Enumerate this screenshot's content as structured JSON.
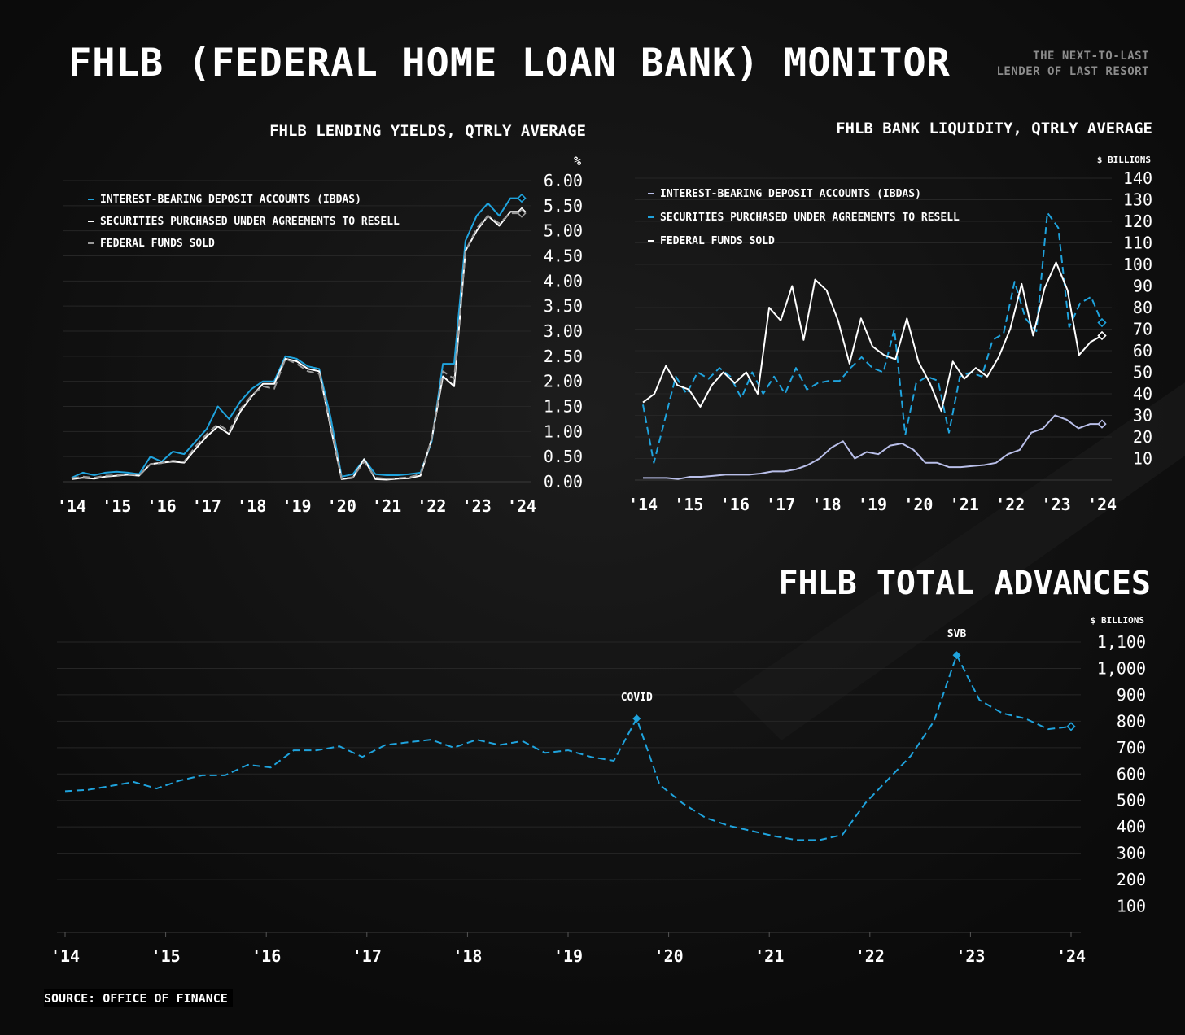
{
  "header": {
    "title": "FHLB (FEDERAL HOME LOAN BANK) MONITOR",
    "subtitle_line1": "THE NEXT-TO-LAST",
    "subtitle_line2": "LENDER OF LAST RESORT"
  },
  "source": "SOURCE: OFFICE OF FINANCE",
  "colors": {
    "background": "#0b0b0b",
    "accent_blue": "#1fa3dd",
    "white": "#ffffff",
    "lavender": "#b9bfe9",
    "gray": "#9a9a9a",
    "grid": "#262626"
  },
  "chart_data": [
    {
      "type": "line",
      "title": "FHLB LENDING YIELDS, QTRLY AVERAGE",
      "ylabel": "%",
      "ylim": [
        0,
        6
      ],
      "yticks": [
        "0.00",
        "0.50",
        "1.00",
        "1.50",
        "2.00",
        "2.50",
        "3.00",
        "3.50",
        "4.00",
        "4.50",
        "5.00",
        "5.50",
        "6.00"
      ],
      "xticks": [
        "'14",
        "'15",
        "'16",
        "'17",
        "'18",
        "'19",
        "'20",
        "'21",
        "'22",
        "'23",
        "'24"
      ],
      "x_start": 2014.0,
      "x_end": 2024.0,
      "grid": true,
      "legend_position": "top-left",
      "series": [
        {
          "name": "INTEREST-BEARING DEPOSIT ACCOUNTS (IBDAS)",
          "color": "#1fa3dd",
          "dash": "solid",
          "values": [
            0.08,
            0.18,
            0.13,
            0.18,
            0.2,
            0.18,
            0.15,
            0.5,
            0.4,
            0.6,
            0.55,
            0.8,
            1.05,
            1.5,
            1.25,
            1.6,
            1.85,
            2.0,
            2.0,
            2.5,
            2.45,
            2.3,
            2.25,
            1.3,
            0.1,
            0.15,
            0.45,
            0.15,
            0.13,
            0.13,
            0.15,
            0.18,
            0.8,
            2.35,
            2.35,
            4.8,
            5.3,
            5.55,
            5.3,
            5.65,
            5.65
          ]
        },
        {
          "name": "SECURITIES PURCHASED UNDER AGREEMENTS TO RESELL",
          "color": "#ffffff",
          "dash": "solid",
          "values": [
            0.05,
            0.08,
            0.06,
            0.1,
            0.12,
            0.14,
            0.12,
            0.35,
            0.38,
            0.4,
            0.38,
            0.65,
            0.9,
            1.1,
            0.95,
            1.4,
            1.7,
            1.95,
            1.95,
            2.45,
            2.4,
            2.25,
            2.2,
            1.1,
            0.05,
            0.08,
            0.45,
            0.05,
            0.04,
            0.06,
            0.07,
            0.12,
            0.85,
            2.1,
            1.9,
            4.6,
            5.0,
            5.3,
            5.1,
            5.38,
            5.38
          ]
        },
        {
          "name": "FEDERAL FUNDS SOLD",
          "color": "#9a9a9a",
          "dash": "dashed",
          "values": [
            0.07,
            0.1,
            0.08,
            0.12,
            0.13,
            0.15,
            0.13,
            0.35,
            0.37,
            0.42,
            0.4,
            0.7,
            0.95,
            1.15,
            1.0,
            1.45,
            1.72,
            1.9,
            1.85,
            2.45,
            2.35,
            2.2,
            2.15,
            1.15,
            0.06,
            0.09,
            0.4,
            0.08,
            0.06,
            0.07,
            0.09,
            0.15,
            0.85,
            2.2,
            2.05,
            4.6,
            5.05,
            5.3,
            5.15,
            5.35,
            5.35
          ]
        }
      ]
    },
    {
      "type": "line",
      "title": "FHLB BANK LIQUIDITY, QTRLY AVERAGE",
      "ylabel": "$ BILLIONS",
      "ylim": [
        0,
        140
      ],
      "yticks": [
        "10",
        "20",
        "30",
        "40",
        "50",
        "60",
        "70",
        "80",
        "90",
        "100",
        "110",
        "120",
        "130",
        "140"
      ],
      "xticks": [
        "'14",
        "'15",
        "'16",
        "'17",
        "'18",
        "'19",
        "'20",
        "'21",
        "'22",
        "'23",
        "'24"
      ],
      "x_start": 2014.0,
      "x_end": 2024.0,
      "grid": true,
      "legend_position": "top-left",
      "series": [
        {
          "name": "INTEREST-BEARING DEPOSIT ACCOUNTS (IBDAS)",
          "color": "#b9bfe9",
          "dash": "solid",
          "values": [
            1,
            1,
            1,
            0.5,
            1.5,
            1.5,
            2,
            2.5,
            2.5,
            2.5,
            3,
            4,
            4,
            5,
            7,
            10,
            15,
            18,
            10,
            13,
            12,
            16,
            17,
            14,
            8,
            8,
            6,
            6,
            6.5,
            7,
            8,
            12,
            14,
            22,
            24,
            30,
            28,
            24,
            26,
            26
          ]
        },
        {
          "name": "SECURITIES PURCHASED UNDER AGREEMENTS TO RESELL",
          "color": "#1fa3dd",
          "dash": "dashed",
          "values": [
            35,
            8,
            28,
            48,
            40,
            50,
            47,
            52,
            48,
            38,
            50,
            40,
            48,
            40,
            52,
            42,
            45,
            46,
            46,
            52,
            57,
            52,
            50,
            70,
            21,
            45,
            48,
            46,
            22,
            48,
            50,
            48,
            65,
            68,
            92,
            75,
            69,
            124,
            117,
            71,
            82,
            85,
            73
          ]
        },
        {
          "name": "FEDERAL FUNDS SOLD",
          "color": "#ffffff",
          "dash": "solid",
          "values": [
            36,
            40,
            53,
            44,
            42,
            34,
            44,
            50,
            45,
            50,
            40,
            80,
            74,
            90,
            65,
            93,
            88,
            74,
            54,
            75,
            62,
            58,
            56,
            75,
            55,
            45,
            32,
            55,
            47,
            52,
            48,
            57,
            70,
            91,
            67,
            89,
            101,
            88,
            58,
            64,
            67
          ]
        }
      ]
    },
    {
      "type": "line",
      "title": "FHLB TOTAL ADVANCES",
      "ylabel": "$ BILLIONS",
      "ylim": [
        0,
        1100
      ],
      "yticks": [
        "100",
        "200",
        "300",
        "400",
        "500",
        "600",
        "700",
        "800",
        "900",
        "1,000",
        "1,100"
      ],
      "xticks": [
        "'14",
        "'15",
        "'16",
        "'17",
        "'18",
        "'19",
        "'20",
        "'21",
        "'22",
        "'23",
        "'24"
      ],
      "x_start": 2014.0,
      "x_end": 2024.0,
      "grid": true,
      "series": [
        {
          "name": "",
          "color": "#1fa3dd",
          "dash": "dashed",
          "values": [
            535,
            540,
            555,
            570,
            545,
            575,
            595,
            595,
            635,
            625,
            690,
            690,
            705,
            665,
            710,
            720,
            730,
            700,
            730,
            710,
            725,
            680,
            690,
            665,
            650,
            810,
            560,
            490,
            435,
            405,
            385,
            365,
            350,
            350,
            370,
            490,
            580,
            670,
            800,
            1050,
            880,
            830,
            810,
            770,
            780
          ]
        }
      ],
      "annotations": [
        {
          "label": "COVID",
          "series_index": 25
        },
        {
          "label": "SVB",
          "series_index": 39
        }
      ]
    }
  ]
}
